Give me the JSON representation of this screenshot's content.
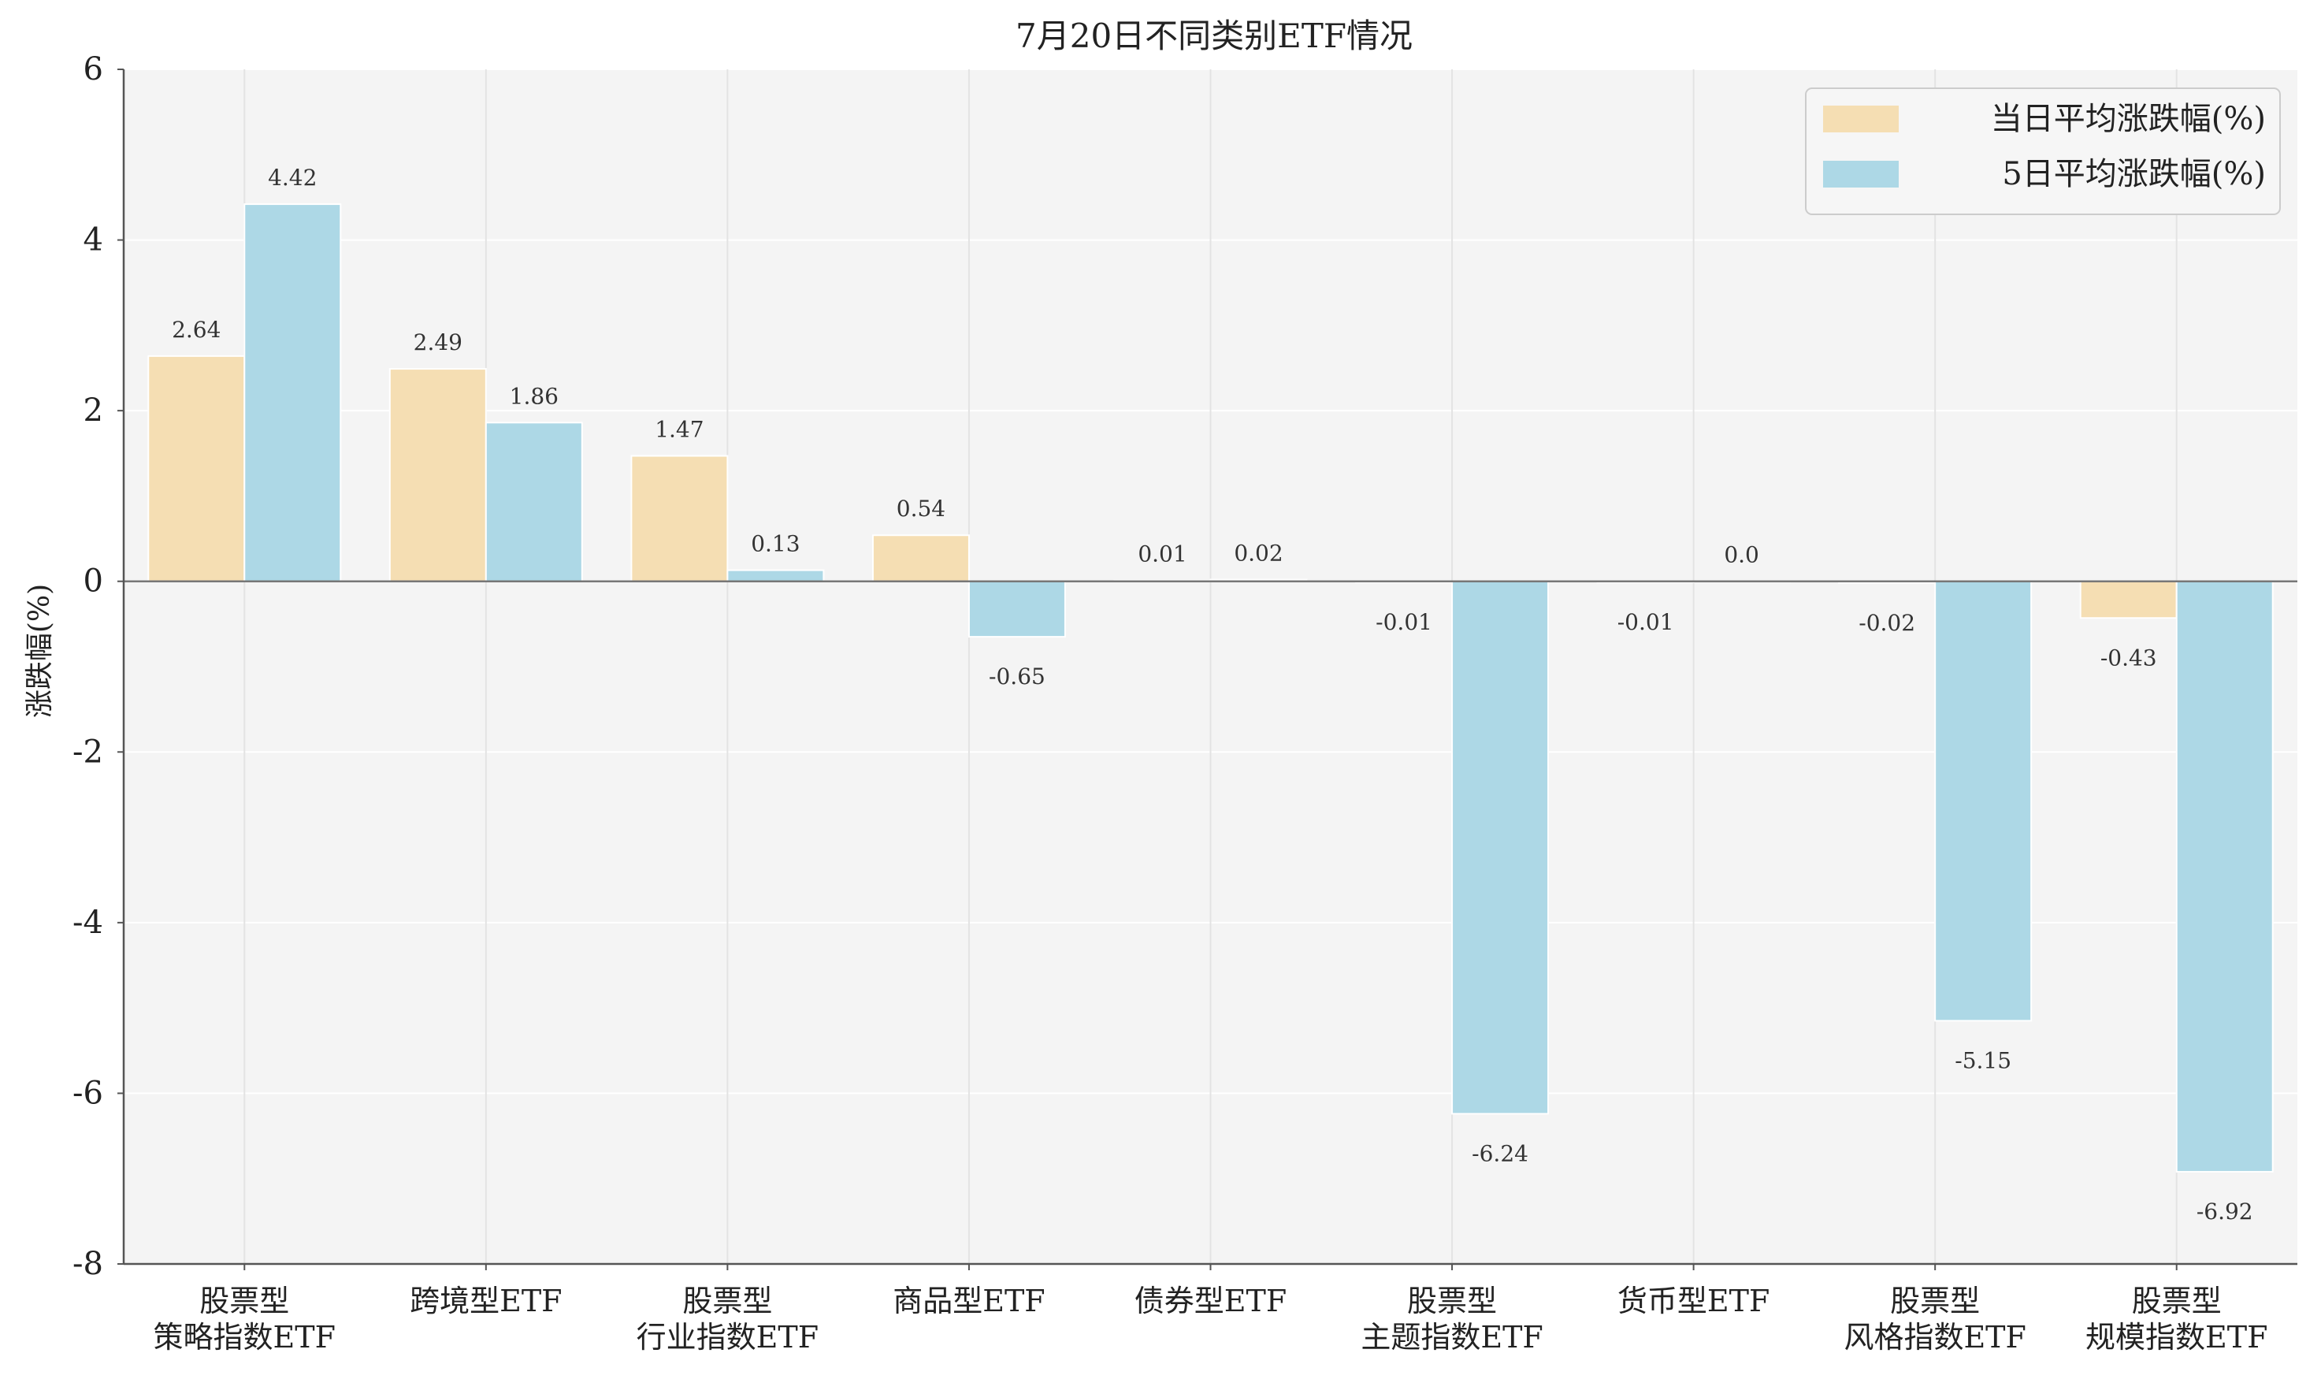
{
  "chart_data": {
    "type": "bar",
    "title": "7月20日不同类别ETF情况",
    "ylabel": "涨跌幅(%)",
    "xlabel": "",
    "ylim": [
      -8,
      6
    ],
    "yticks": [
      6,
      4,
      2,
      0,
      -2,
      -4,
      -6,
      -8
    ],
    "ytick_labels": [
      "6",
      "4",
      "2",
      "0",
      "-2",
      "-4",
      "-6",
      "-8"
    ],
    "categories": [
      [
        "股票型",
        "策略指数ETF"
      ],
      [
        "跨境型ETF"
      ],
      [
        "股票型",
        "行业指数ETF"
      ],
      [
        "商品型ETF"
      ],
      [
        "债券型ETF"
      ],
      [
        "股票型",
        "主题指数ETF"
      ],
      [
        "货币型ETF"
      ],
      [
        "股票型",
        "风格指数ETF"
      ],
      [
        "股票型",
        "规模指数ETF"
      ]
    ],
    "series": [
      {
        "name": "当日平均涨跌幅(%)",
        "color": "#f5deb3",
        "values": [
          2.64,
          2.49,
          1.47,
          0.54,
          0.01,
          -0.01,
          -0.01,
          -0.02,
          -0.43
        ],
        "labels": [
          "2.64",
          "2.49",
          "1.47",
          "0.54",
          "0.01",
          "-0.01",
          "-0.01",
          "-0.02",
          "-0.43"
        ]
      },
      {
        "name": "5日平均涨跌幅(%)",
        "color": "#add8e6",
        "values": [
          4.42,
          1.86,
          0.13,
          -0.65,
          0.02,
          -6.24,
          0.0,
          -5.15,
          -6.92
        ],
        "labels": [
          "4.42",
          "1.86",
          "0.13",
          "-0.65",
          "0.02",
          "-6.24",
          "0.0",
          "-5.15",
          "-6.92"
        ]
      }
    ],
    "grid": true,
    "legend_position": "top-right"
  }
}
